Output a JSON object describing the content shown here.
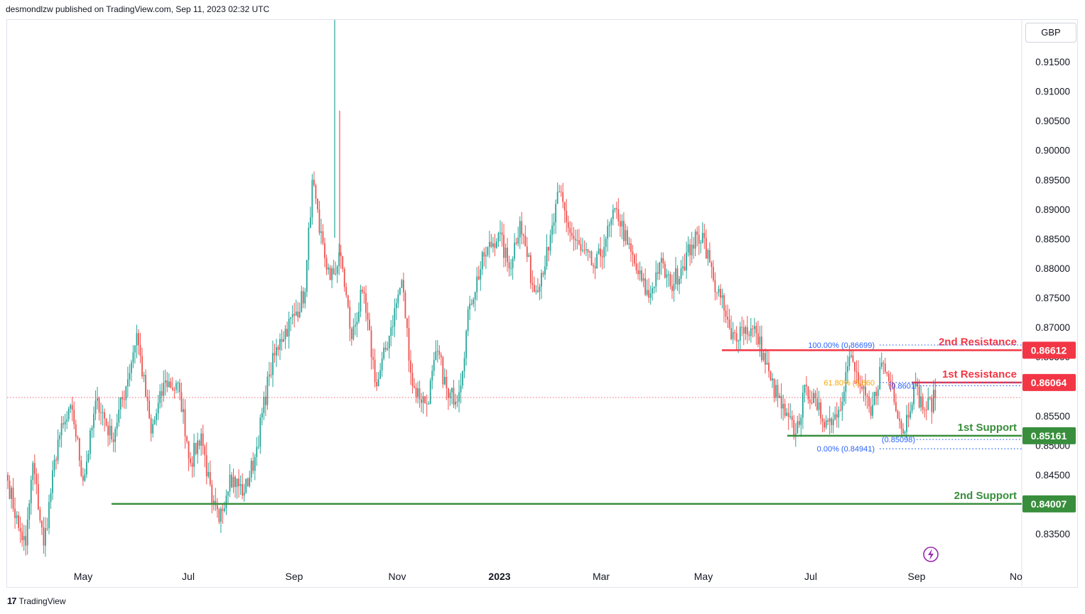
{
  "header": {
    "text": "desmondlzw published on TradingView.com, Sep 11, 2023 02:32 UTC"
  },
  "currency": "GBP",
  "footer": {
    "brand": "TradingView",
    "logo_mark": "17"
  },
  "colors": {
    "up": "#26a69a",
    "down": "#ef5350",
    "resistance": "#f23645",
    "support": "#388e3c",
    "fib": "#2962ff",
    "fib_mid": "#f7a600",
    "current": "#f23645"
  },
  "chart_data": {
    "type": "candlestick",
    "ylim": [
      0.8305,
      0.9205
    ],
    "y_ticks": [
      "0.91500",
      "0.91000",
      "0.90500",
      "0.90000",
      "0.89500",
      "0.89000",
      "0.88500",
      "0.88000",
      "0.87500",
      "0.87000",
      "0.86500",
      "0.86000",
      "0.85500",
      "0.85000",
      "0.84500",
      "0.84000",
      "0.83500"
    ],
    "x_ticks": [
      "May",
      "Jul",
      "Sep",
      "Nov",
      "2023",
      "Mar",
      "May",
      "Jul",
      "Sep",
      "No"
    ],
    "current_price": 0.8581,
    "levels": [
      {
        "label": "2nd Resistance",
        "value": "0.86612",
        "kind": "resistance"
      },
      {
        "label": "1st Resistance",
        "value": "0.86064",
        "kind": "resistance"
      },
      {
        "label": "1st Support",
        "value": "0.85161",
        "kind": "support"
      },
      {
        "label": "2nd Support",
        "value": "0.84007",
        "kind": "support"
      }
    ],
    "fibonacci": [
      {
        "label": "100.00% (0.86699)",
        "value": 0.86699
      },
      {
        "label": "61.80% (0.860",
        "value": 0.86064
      },
      {
        "label": "(0.8601",
        "value": 0.8601
      },
      {
        "label": "(0.85098)",
        "value": 0.85098
      },
      {
        "label": "0.00% (0.84941)",
        "value": 0.84941
      }
    ],
    "anchors": [
      [
        0,
        0.844
      ],
      [
        6,
        0.836
      ],
      [
        10,
        0.833
      ],
      [
        14,
        0.847
      ],
      [
        20,
        0.833
      ],
      [
        28,
        0.851
      ],
      [
        36,
        0.856
      ],
      [
        42,
        0.844
      ],
      [
        50,
        0.858
      ],
      [
        58,
        0.851
      ],
      [
        66,
        0.86
      ],
      [
        72,
        0.869
      ],
      [
        80,
        0.852
      ],
      [
        88,
        0.861
      ],
      [
        96,
        0.859
      ],
      [
        102,
        0.847
      ],
      [
        108,
        0.852
      ],
      [
        114,
        0.84
      ],
      [
        118,
        0.837
      ],
      [
        124,
        0.845
      ],
      [
        132,
        0.842
      ],
      [
        138,
        0.848
      ],
      [
        146,
        0.862
      ],
      [
        152,
        0.868
      ],
      [
        160,
        0.872
      ],
      [
        166,
        0.876
      ],
      [
        170,
        0.895
      ],
      [
        174,
        0.886
      ],
      [
        180,
        0.878
      ],
      [
        186,
        0.882
      ],
      [
        192,
        0.868
      ],
      [
        198,
        0.876
      ],
      [
        206,
        0.86
      ],
      [
        214,
        0.87
      ],
      [
        220,
        0.878
      ],
      [
        226,
        0.86
      ],
      [
        234,
        0.857
      ],
      [
        240,
        0.866
      ],
      [
        246,
        0.858
      ],
      [
        252,
        0.859
      ],
      [
        258,
        0.874
      ],
      [
        266,
        0.882
      ],
      [
        274,
        0.886
      ],
      [
        280,
        0.88
      ],
      [
        286,
        0.888
      ],
      [
        294,
        0.876
      ],
      [
        302,
        0.883
      ],
      [
        308,
        0.893
      ],
      [
        314,
        0.886
      ],
      [
        320,
        0.883
      ],
      [
        328,
        0.88
      ],
      [
        334,
        0.885
      ],
      [
        340,
        0.89
      ],
      [
        346,
        0.884
      ],
      [
        352,
        0.879
      ],
      [
        358,
        0.875
      ],
      [
        364,
        0.881
      ],
      [
        370,
        0.877
      ],
      [
        376,
        0.88
      ],
      [
        382,
        0.884
      ],
      [
        388,
        0.886
      ],
      [
        394,
        0.878
      ],
      [
        398,
        0.875
      ],
      [
        404,
        0.868
      ],
      [
        410,
        0.87
      ],
      [
        418,
        0.869
      ],
      [
        426,
        0.861
      ],
      [
        434,
        0.855
      ],
      [
        440,
        0.852
      ],
      [
        446,
        0.86
      ],
      [
        452,
        0.856
      ],
      [
        458,
        0.854
      ],
      [
        464,
        0.856
      ],
      [
        470,
        0.865
      ],
      [
        476,
        0.86
      ],
      [
        482,
        0.855
      ],
      [
        488,
        0.864
      ],
      [
        494,
        0.86
      ],
      [
        500,
        0.852
      ],
      [
        506,
        0.86
      ],
      [
        512,
        0.856
      ],
      [
        518,
        0.858
      ]
    ]
  }
}
